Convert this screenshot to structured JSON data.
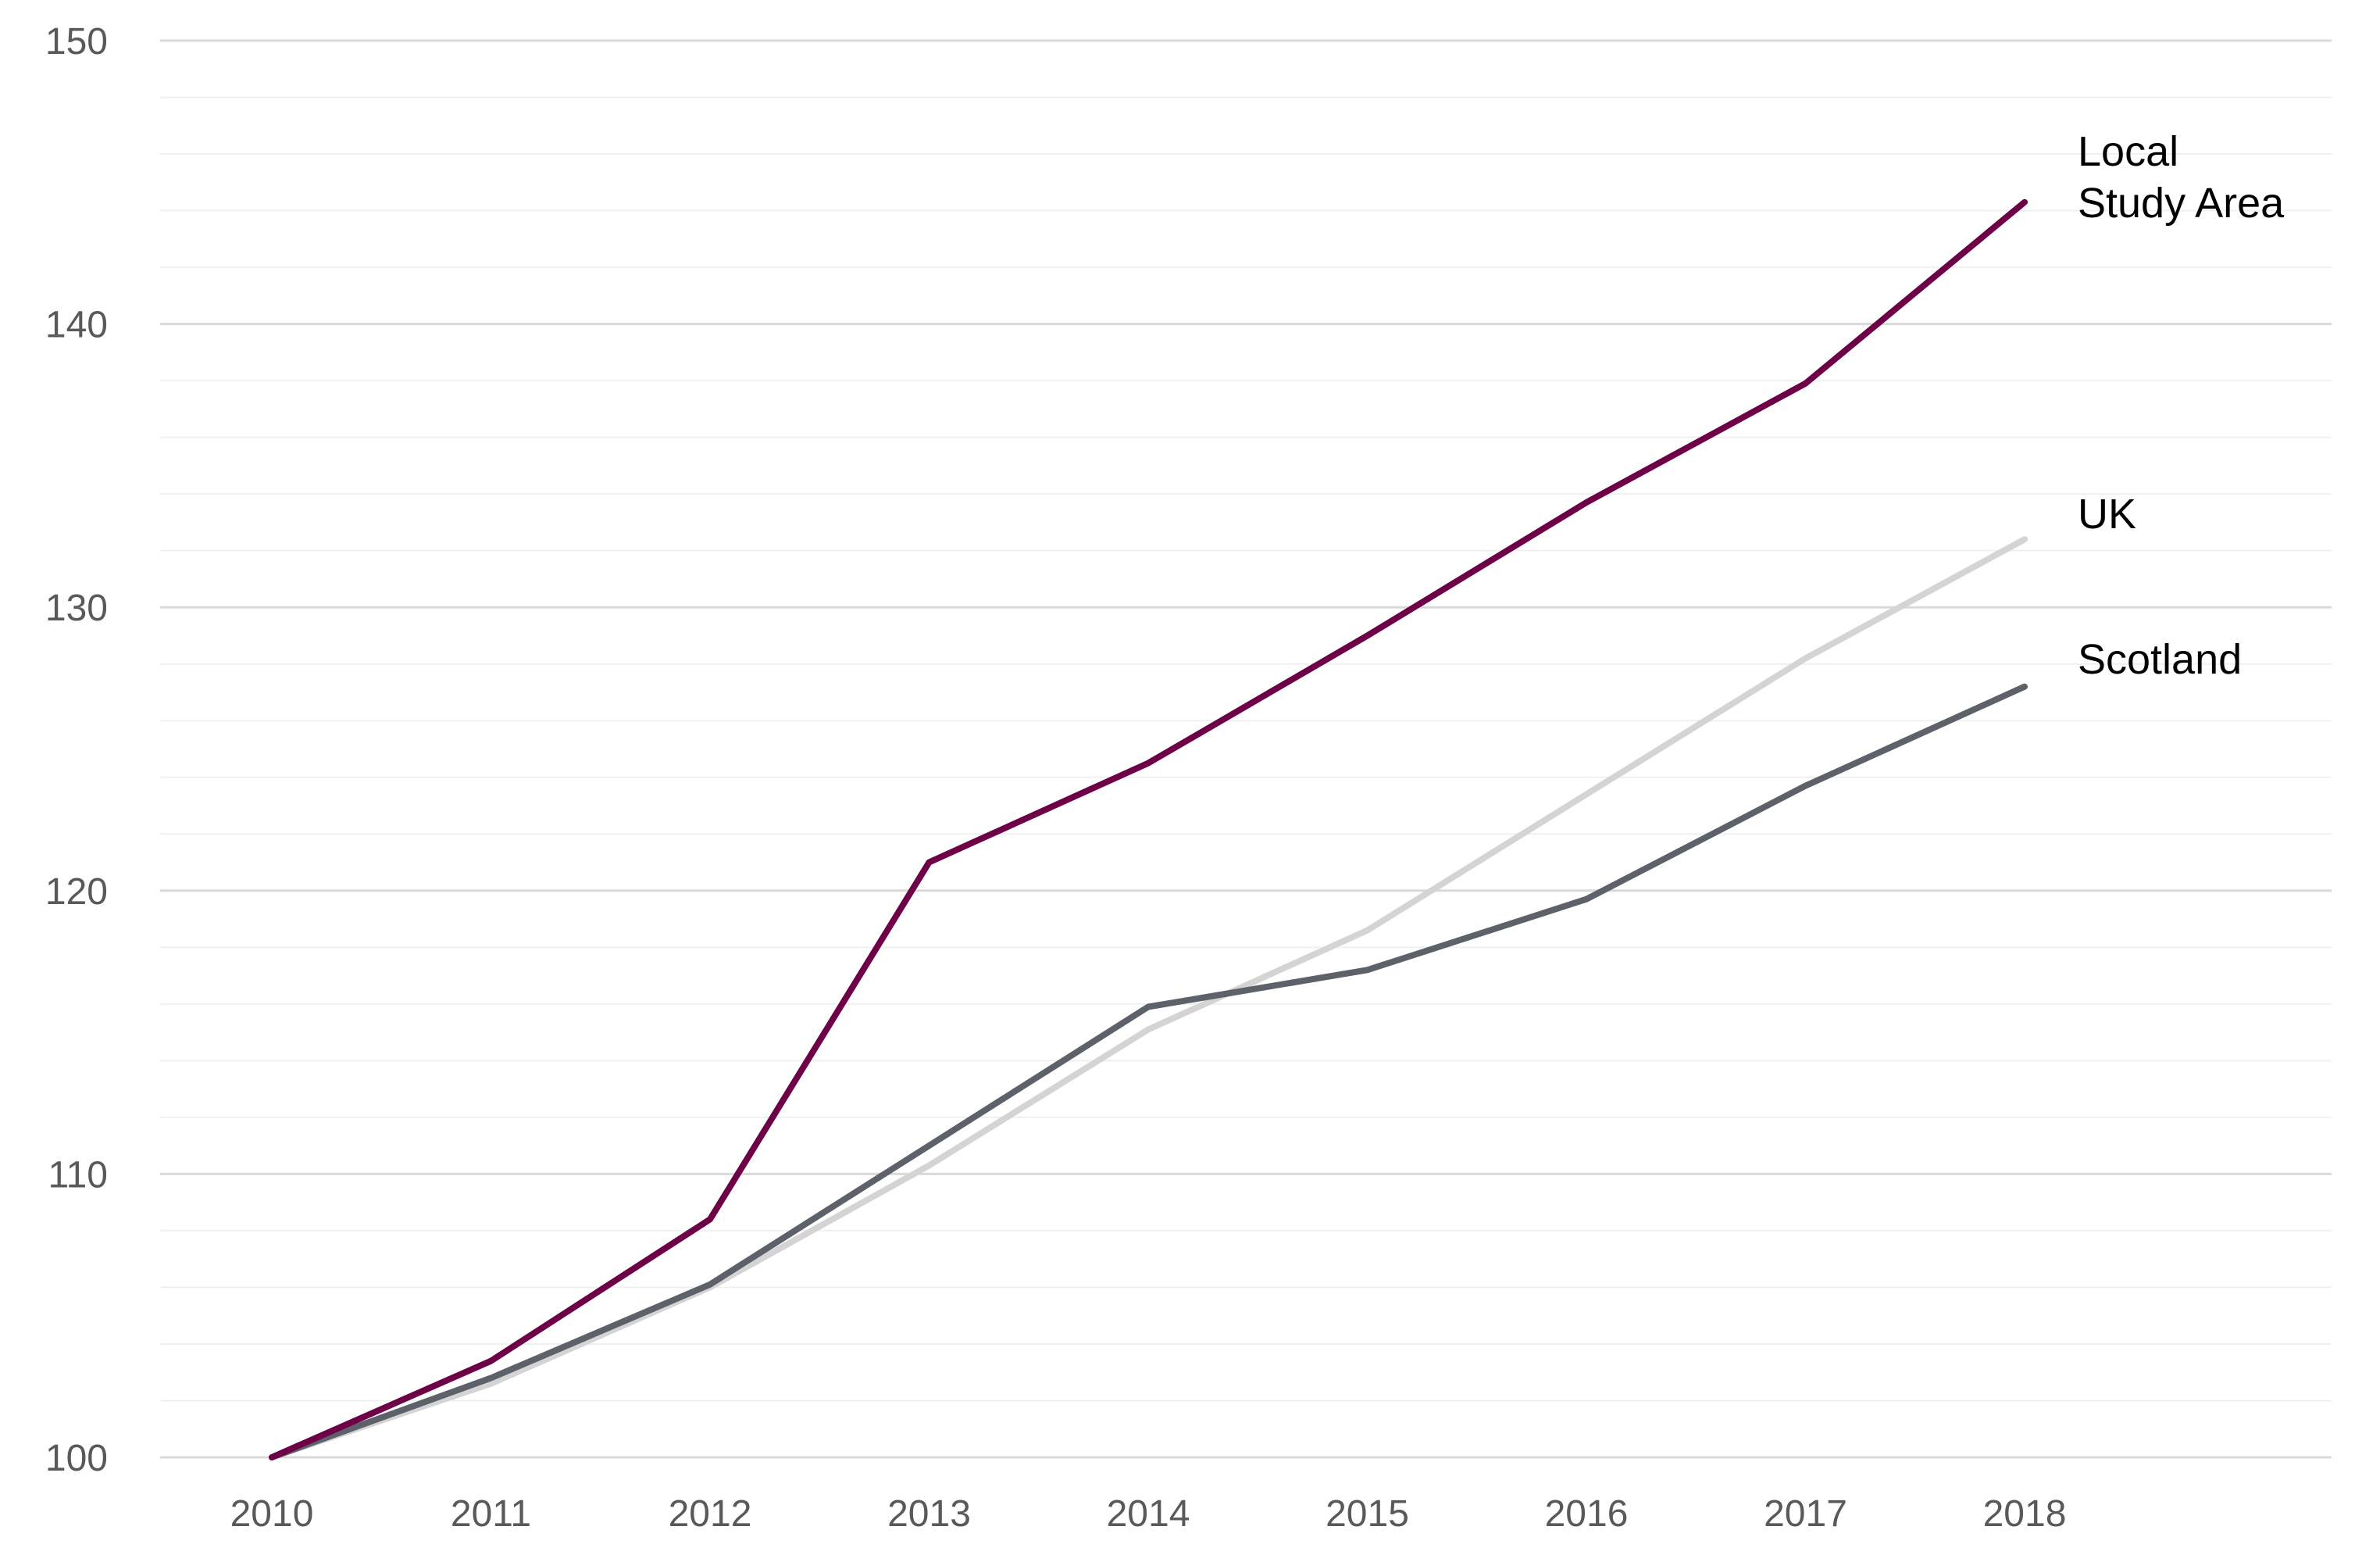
{
  "chart_data": {
    "type": "line",
    "title": "",
    "xlabel": "",
    "ylabel": "",
    "x": [
      "2010",
      "2011",
      "2012",
      "2013",
      "2014",
      "2015",
      "2016",
      "2017",
      "2018"
    ],
    "ylim": [
      100,
      150
    ],
    "yticks": [
      "100",
      "110",
      "120",
      "130",
      "140",
      "150"
    ],
    "grid": "horizontal",
    "series": [
      {
        "name": "Local Study Area",
        "label_lines": [
          "Local",
          "Study Area"
        ],
        "color": "#6d0046",
        "values": [
          100,
          103.4,
          108.4,
          121.0,
          124.5,
          129.0,
          133.7,
          137.9,
          144.3
        ]
      },
      {
        "name": "UK",
        "label_lines": [
          "UK"
        ],
        "color": "#d4d4d4",
        "values": [
          100,
          102.6,
          106.0,
          110.3,
          115.1,
          118.6,
          123.4,
          128.2,
          132.4
        ]
      },
      {
        "name": "Scotland",
        "label_lines": [
          "Scotland"
        ],
        "color": "#5d6169",
        "values": [
          100,
          102.8,
          106.1,
          111.0,
          115.9,
          117.2,
          119.7,
          123.7,
          127.2
        ]
      }
    ]
  }
}
